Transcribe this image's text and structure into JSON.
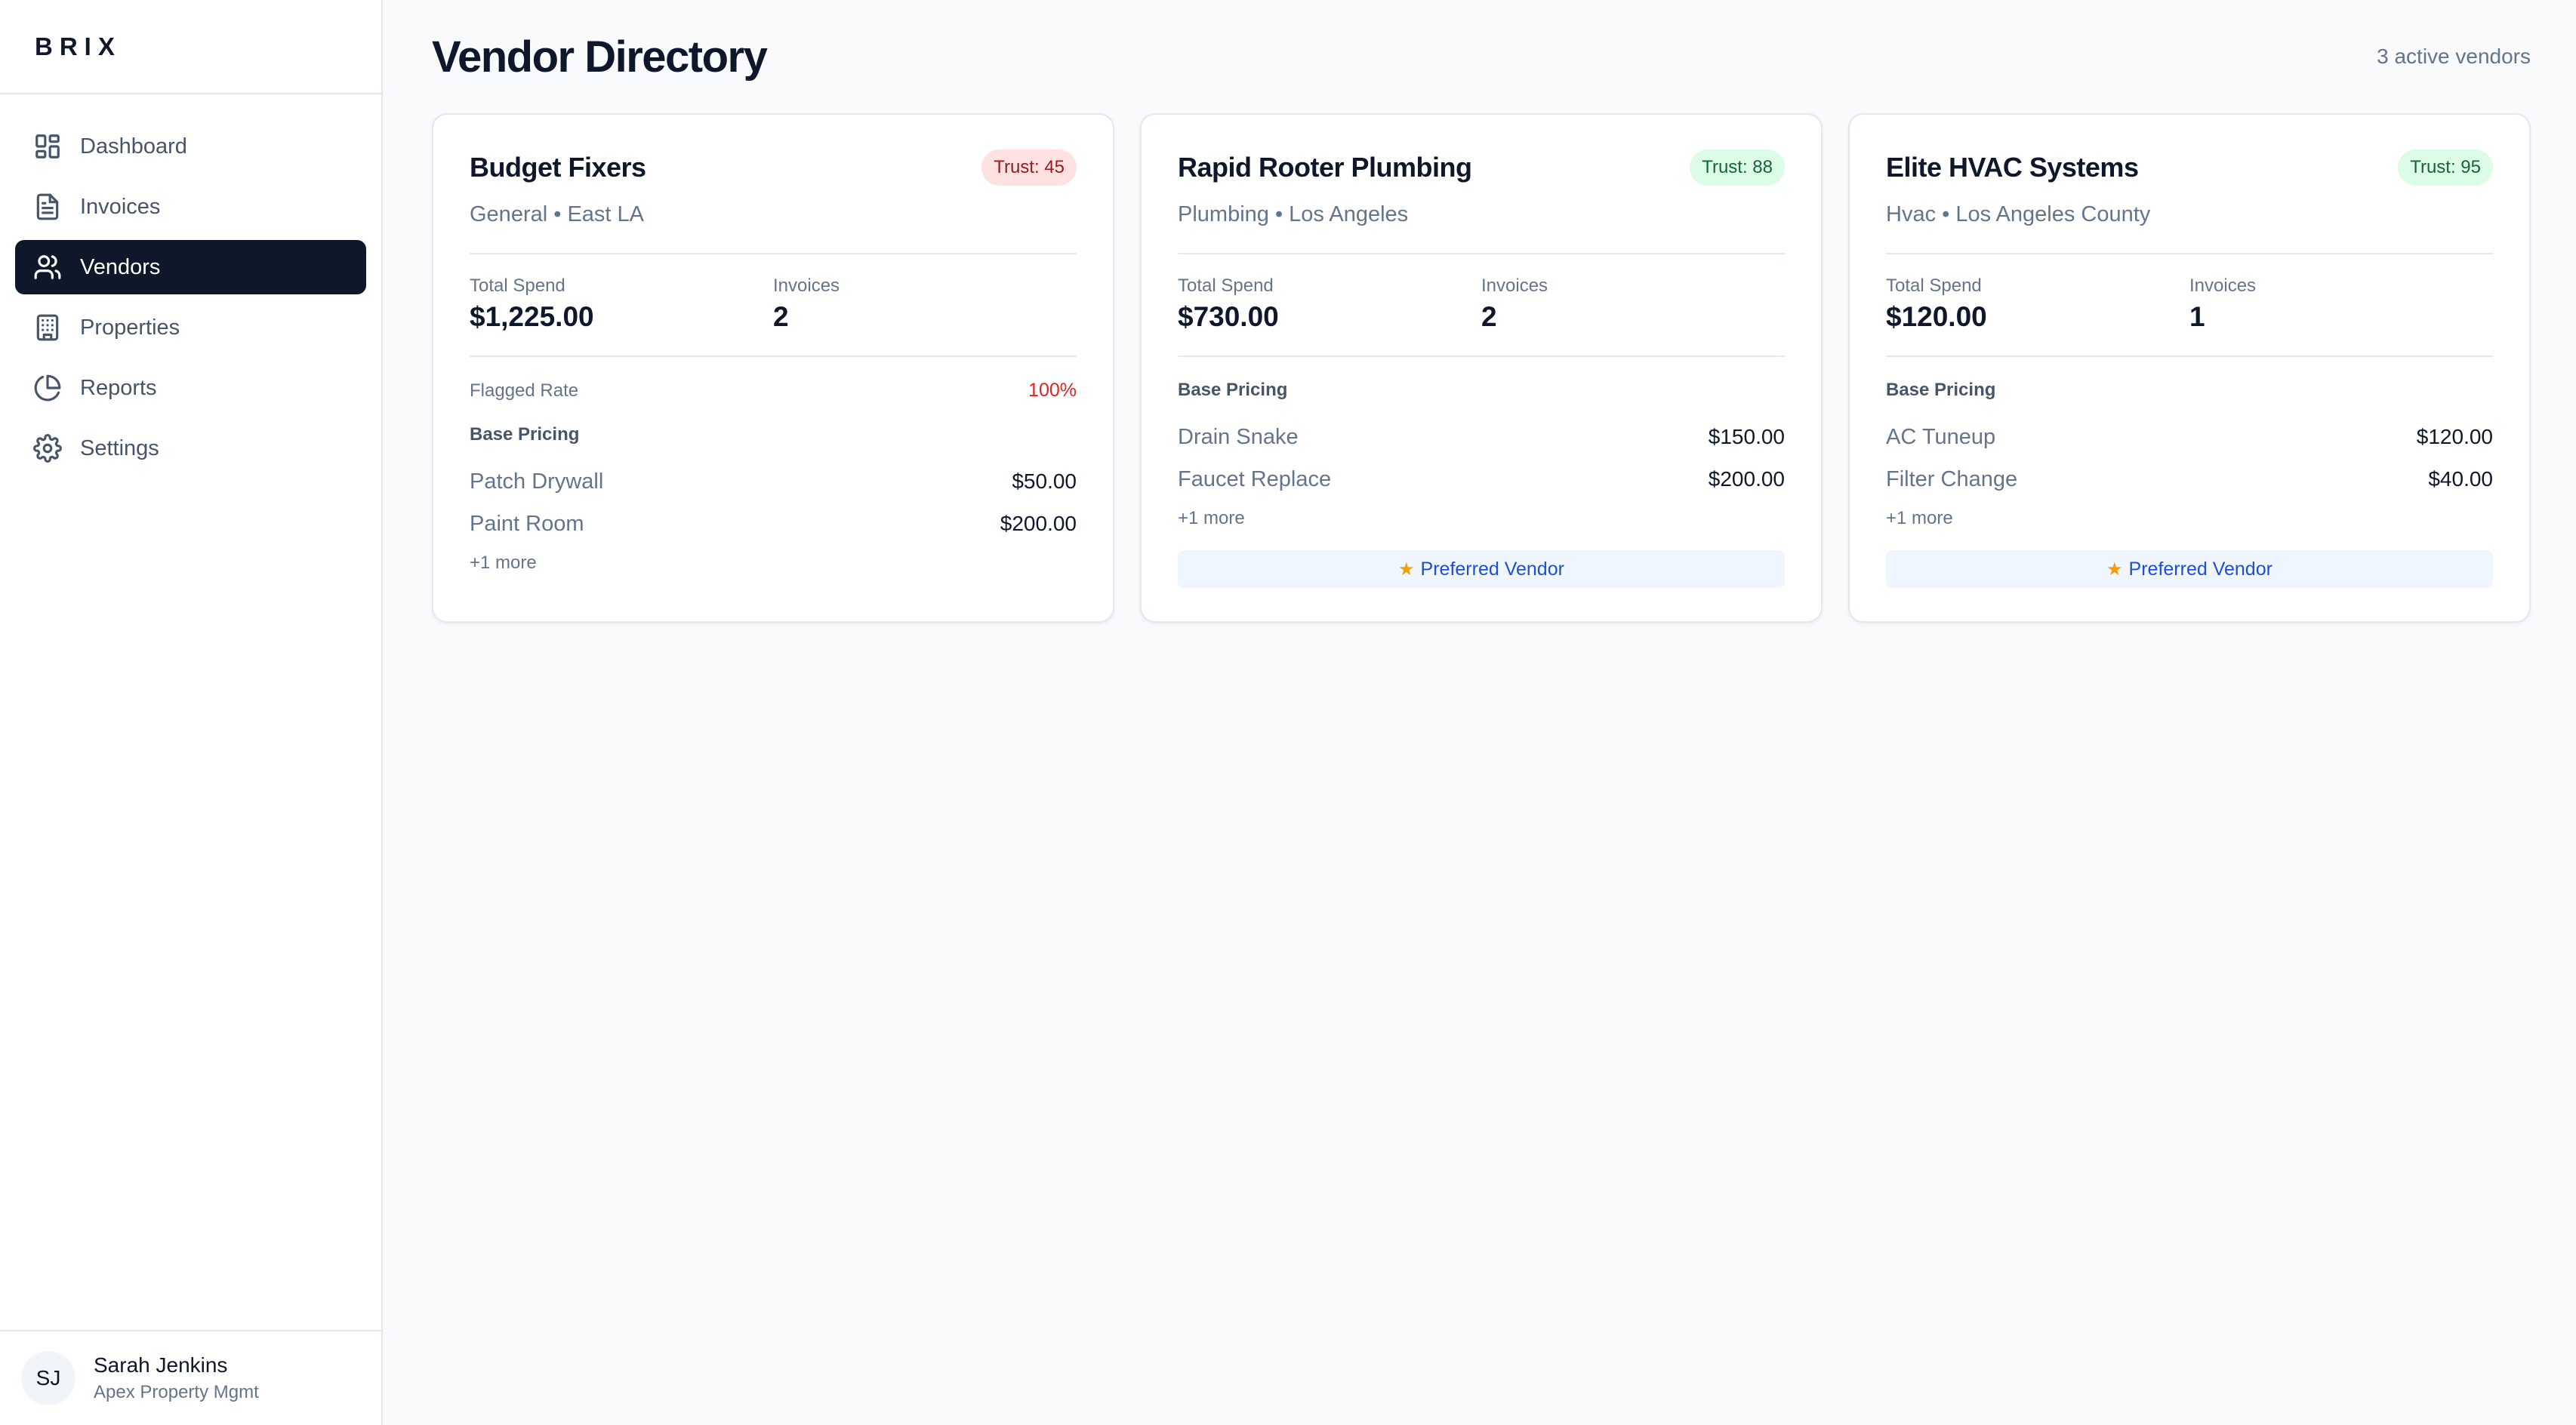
{
  "brand": {
    "name": "BRIX"
  },
  "sidebar": {
    "items": [
      {
        "label": "Dashboard",
        "icon": "dashboard-icon",
        "active": false
      },
      {
        "label": "Invoices",
        "icon": "document-icon",
        "active": false
      },
      {
        "label": "Vendors",
        "icon": "users-icon",
        "active": true
      },
      {
        "label": "Properties",
        "icon": "building-icon",
        "active": false
      },
      {
        "label": "Reports",
        "icon": "pie-chart-icon",
        "active": false
      },
      {
        "label": "Settings",
        "icon": "gear-icon",
        "active": false
      }
    ]
  },
  "user": {
    "initials": "SJ",
    "name": "Sarah Jenkins",
    "org": "Apex Property Mgmt"
  },
  "header": {
    "title": "Vendor Directory",
    "count": "3 active vendors"
  },
  "labels": {
    "total_spend": "Total Spend",
    "invoices": "Invoices",
    "flagged_rate": "Flagged Rate",
    "base_pricing": "Base Pricing",
    "preferred": "Preferred Vendor"
  },
  "vendors": [
    {
      "name": "Budget Fixers",
      "trust": "Trust: 45",
      "meta": "General • East LA",
      "total_spend": "$1,225.00",
      "invoices": "2",
      "flagged_rate": "100%",
      "pricing": [
        {
          "name": "Patch Drywall",
          "price": "$50.00"
        },
        {
          "name": "Paint Room",
          "price": "$200.00"
        }
      ],
      "more": "+1 more"
    },
    {
      "name": "Rapid Rooter Plumbing",
      "trust": "Trust: 88",
      "meta": "Plumbing • Los Angeles",
      "total_spend": "$730.00",
      "invoices": "2",
      "pricing": [
        {
          "name": "Drain Snake",
          "price": "$150.00"
        },
        {
          "name": "Faucet Replace",
          "price": "$200.00"
        }
      ],
      "more": "+1 more"
    },
    {
      "name": "Elite HVAC Systems",
      "trust": "Trust: 95",
      "meta": "Hvac • Los Angeles County",
      "total_spend": "$120.00",
      "invoices": "1",
      "pricing": [
        {
          "name": "AC Tuneup",
          "price": "$120.00"
        },
        {
          "name": "Filter Change",
          "price": "$40.00"
        }
      ],
      "more": "+1 more"
    }
  ],
  "colors": {
    "nav_active_bg": "#0f172a",
    "trust_low_bg": "#fee2e2",
    "trust_high_bg": "#dcfce7",
    "flagged": "#dc2626",
    "preferred_text": "#1d4ed8"
  }
}
